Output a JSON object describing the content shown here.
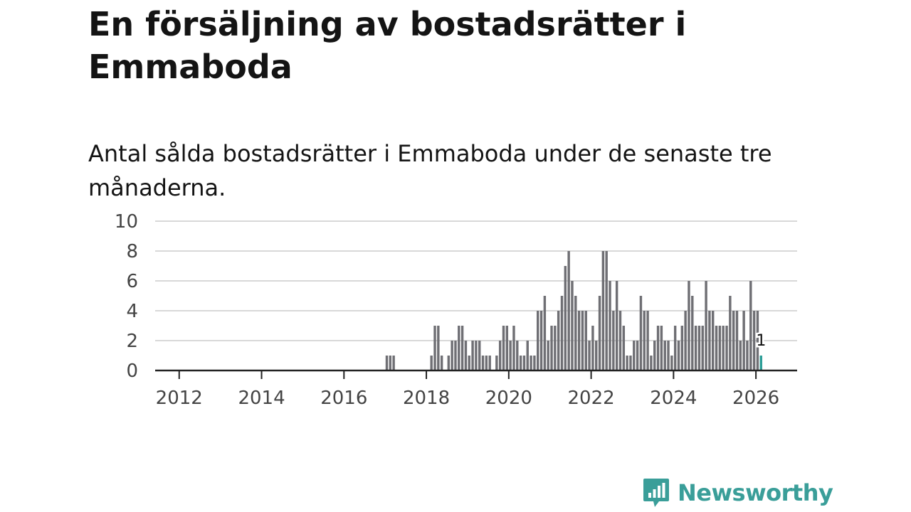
{
  "header": {
    "title": "En försäljning av bostadsrätter i Emmaboda",
    "subtitle": "Antal sålda bostadsrätter i Emmaboda under de senaste tre månaderna."
  },
  "brand": {
    "name": "Newsworthy"
  },
  "colors": {
    "bar": "#6f6f74",
    "highlight": "#2a9d96",
    "grid": "#d8d8d8",
    "axis": "#222222",
    "brand": "#3a9e99"
  },
  "chart_data": {
    "type": "bar",
    "title": "Antal sålda bostadsrätter i Emmaboda under de senaste tre månaderna.",
    "xlabel": "",
    "ylabel": "",
    "ylim": [
      0,
      10
    ],
    "yticks": [
      0,
      2,
      4,
      6,
      8,
      10
    ],
    "xticks": [
      "2012",
      "2014",
      "2016",
      "2018",
      "2020",
      "2022",
      "2024",
      "2026"
    ],
    "x_start": "2011-06",
    "x_end": "2026-12",
    "series": [
      {
        "name": "Sålda bostadsrätter",
        "points": [
          [
            "2017-01",
            1
          ],
          [
            "2017-02",
            1
          ],
          [
            "2017-03",
            1
          ],
          [
            "2018-02",
            1
          ],
          [
            "2018-03",
            3
          ],
          [
            "2018-04",
            3
          ],
          [
            "2018-05",
            1
          ],
          [
            "2018-07",
            1
          ],
          [
            "2018-08",
            2
          ],
          [
            "2018-09",
            2
          ],
          [
            "2018-10",
            3
          ],
          [
            "2018-11",
            3
          ],
          [
            "2018-12",
            2
          ],
          [
            "2019-01",
            1
          ],
          [
            "2019-02",
            2
          ],
          [
            "2019-03",
            2
          ],
          [
            "2019-04",
            2
          ],
          [
            "2019-05",
            1
          ],
          [
            "2019-06",
            1
          ],
          [
            "2019-07",
            1
          ],
          [
            "2019-09",
            1
          ],
          [
            "2019-10",
            2
          ],
          [
            "2019-11",
            3
          ],
          [
            "2019-12",
            3
          ],
          [
            "2020-01",
            2
          ],
          [
            "2020-02",
            3
          ],
          [
            "2020-03",
            2
          ],
          [
            "2020-04",
            1
          ],
          [
            "2020-05",
            1
          ],
          [
            "2020-06",
            2
          ],
          [
            "2020-07",
            1
          ],
          [
            "2020-08",
            1
          ],
          [
            "2020-09",
            4
          ],
          [
            "2020-10",
            4
          ],
          [
            "2020-11",
            5
          ],
          [
            "2020-12",
            2
          ],
          [
            "2021-01",
            3
          ],
          [
            "2021-02",
            3
          ],
          [
            "2021-03",
            4
          ],
          [
            "2021-04",
            5
          ],
          [
            "2021-05",
            7
          ],
          [
            "2021-06",
            8
          ],
          [
            "2021-07",
            6
          ],
          [
            "2021-08",
            5
          ],
          [
            "2021-09",
            4
          ],
          [
            "2021-10",
            4
          ],
          [
            "2021-11",
            4
          ],
          [
            "2021-12",
            2
          ],
          [
            "2022-01",
            3
          ],
          [
            "2022-02",
            2
          ],
          [
            "2022-03",
            5
          ],
          [
            "2022-04",
            8
          ],
          [
            "2022-05",
            8
          ],
          [
            "2022-06",
            6
          ],
          [
            "2022-07",
            4
          ],
          [
            "2022-08",
            6
          ],
          [
            "2022-09",
            4
          ],
          [
            "2022-10",
            3
          ],
          [
            "2022-11",
            1
          ],
          [
            "2022-12",
            1
          ],
          [
            "2023-01",
            2
          ],
          [
            "2023-02",
            2
          ],
          [
            "2023-03",
            5
          ],
          [
            "2023-04",
            4
          ],
          [
            "2023-05",
            4
          ],
          [
            "2023-06",
            1
          ],
          [
            "2023-07",
            2
          ],
          [
            "2023-08",
            3
          ],
          [
            "2023-09",
            3
          ],
          [
            "2023-10",
            2
          ],
          [
            "2023-11",
            2
          ],
          [
            "2023-12",
            1
          ],
          [
            "2024-01",
            3
          ],
          [
            "2024-02",
            2
          ],
          [
            "2024-03",
            3
          ],
          [
            "2024-04",
            4
          ],
          [
            "2024-05",
            6
          ],
          [
            "2024-06",
            5
          ],
          [
            "2024-07",
            3
          ],
          [
            "2024-08",
            3
          ],
          [
            "2024-09",
            3
          ],
          [
            "2024-10",
            6
          ],
          [
            "2024-11",
            4
          ],
          [
            "2024-12",
            4
          ],
          [
            "2025-01",
            3
          ],
          [
            "2025-02",
            3
          ],
          [
            "2025-03",
            3
          ],
          [
            "2025-04",
            3
          ],
          [
            "2025-05",
            5
          ],
          [
            "2025-06",
            4
          ],
          [
            "2025-07",
            4
          ],
          [
            "2025-08",
            2
          ],
          [
            "2025-09",
            4
          ],
          [
            "2025-10",
            2
          ],
          [
            "2025-11",
            6
          ],
          [
            "2025-12",
            4
          ],
          [
            "2026-01",
            4
          ],
          [
            "2026-02",
            1
          ]
        ]
      }
    ],
    "highlight": {
      "date": "2026-02",
      "value": 1,
      "label": "1"
    }
  }
}
